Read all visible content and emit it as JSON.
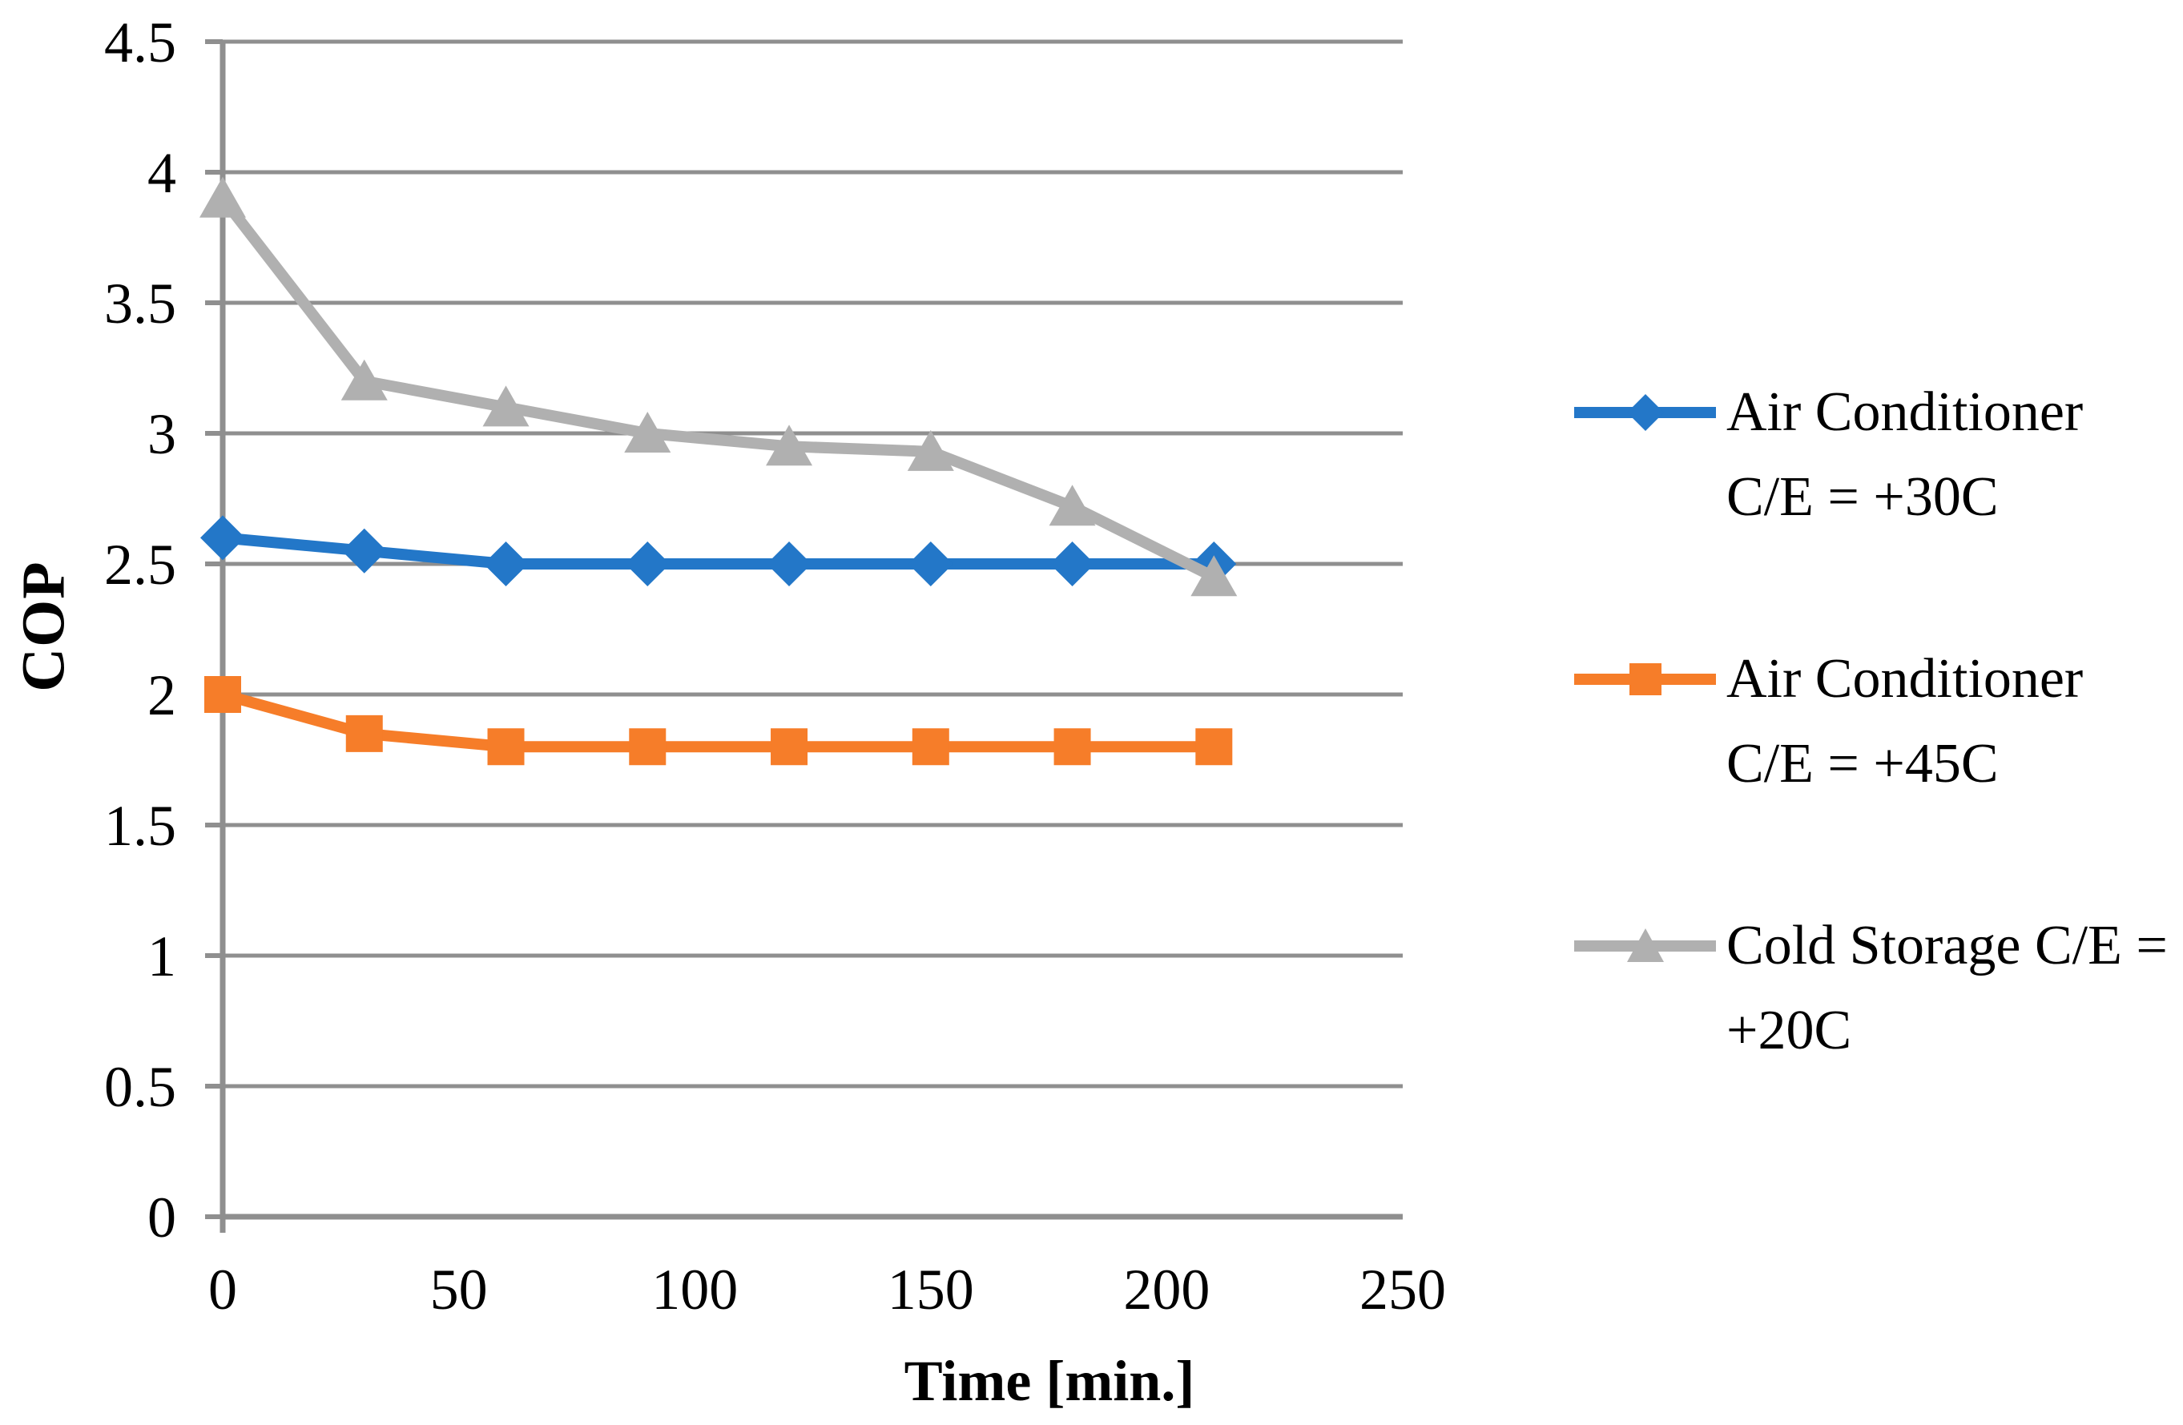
{
  "chart_data": {
    "type": "line",
    "title": "",
    "xlabel": "Time [min.]",
    "ylabel": "COP",
    "x": [
      0,
      30,
      60,
      90,
      120,
      150,
      180,
      210
    ],
    "series": [
      {
        "name": "Air Conditioner C/E = +30C",
        "legend_lines": [
          "Air Conditioner",
          "C/E = +30C"
        ],
        "color": "#2377C8",
        "marker": "diamond",
        "values": [
          2.6,
          2.55,
          2.5,
          2.5,
          2.5,
          2.5,
          2.5,
          2.5
        ]
      },
      {
        "name": "Air Conditioner C/E = +45C",
        "legend_lines": [
          "Air Conditioner",
          "C/E = +45C"
        ],
        "color": "#F67D29",
        "marker": "square",
        "values": [
          2.0,
          1.85,
          1.8,
          1.8,
          1.8,
          1.8,
          1.8,
          1.8
        ]
      },
      {
        "name": "Cold Storage C/E = +20C",
        "legend_lines": [
          "Cold Storage C/E =",
          "+20C"
        ],
        "color": "#B0B0B0",
        "marker": "triangle",
        "values": [
          3.9,
          3.2,
          3.1,
          3.0,
          2.95,
          2.93,
          2.72,
          2.45
        ]
      }
    ],
    "xlim": [
      0,
      250
    ],
    "ylim": [
      0,
      4.5
    ],
    "x_ticks": [
      0,
      50,
      100,
      150,
      200,
      250
    ],
    "y_ticks": [
      0,
      0.5,
      1,
      1.5,
      2,
      2.5,
      3,
      3.5,
      4,
      4.5
    ],
    "grid": "horizontal",
    "legend_position": "right",
    "axis_color": "#8F8F8F",
    "grid_color": "#8F8F8F",
    "text_color": "#000000"
  }
}
